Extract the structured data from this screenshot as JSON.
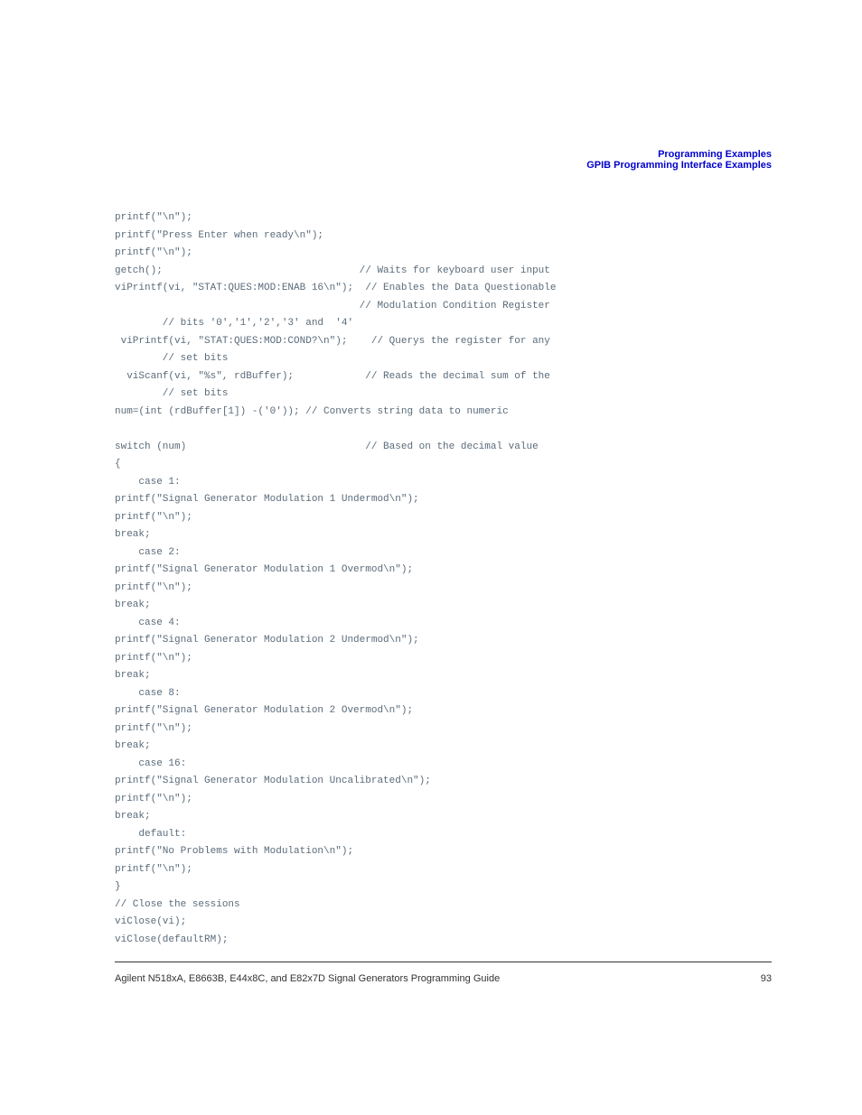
{
  "header": {
    "line1": "Programming Examples",
    "line2": "GPIB Programming Interface Examples"
  },
  "code": {
    "line1": "printf(\"\\n\");",
    "line2": "printf(\"Press Enter when ready\\n\");",
    "line3": "printf(\"\\n\");",
    "line4": "getch();                                 // Waits for keyboard user input",
    "line5": "viPrintf(vi, \"STAT:QUES:MOD:ENAB 16\\n\");  // Enables the Data Questionable",
    "line6": "                                         // Modulation Condition Register",
    "line7": "        // bits '0','1','2','3' and  '4'",
    "line8": " viPrintf(vi, \"STAT:QUES:MOD:COND?\\n\");    // Querys the register for any",
    "line9": "        // set bits",
    "line10": "  viScanf(vi, \"%s\", rdBuffer);            // Reads the decimal sum of the",
    "line11": "        // set bits",
    "line12": "num=(int (rdBuffer[1]) -('0')); // Converts string data to numeric ",
    "line13": "",
    "line14": "switch (num)                              // Based on the decimal value",
    "line15": "{",
    "line16": "    case 1:",
    "line17": "printf(\"Signal Generator Modulation 1 Undermod\\n\");",
    "line18": "printf(\"\\n\");",
    "line19": "break;",
    "line20": "    case 2:",
    "line21": "printf(\"Signal Generator Modulation 1 Overmod\\n\");",
    "line22": "printf(\"\\n\");",
    "line23": "break;",
    "line24": "    case 4:",
    "line25": "printf(\"Signal Generator Modulation 2 Undermod\\n\");",
    "line26": "printf(\"\\n\");",
    "line27": "break;",
    "line28": "    case 8:",
    "line29": "printf(\"Signal Generator Modulation 2 Overmod\\n\");",
    "line30": "printf(\"\\n\");",
    "line31": "break;",
    "line32": "    case 16:",
    "line33": "printf(\"Signal Generator Modulation Uncalibrated\\n\");",
    "line34": "printf(\"\\n\");",
    "line35": "break;",
    "line36": "    default:",
    "line37": "printf(\"No Problems with Modulation\\n\");",
    "line38": "printf(\"\\n\");",
    "line39": "}",
    "line40": "// Close the sessions",
    "line41": "viClose(vi);",
    "line42": "viClose(defaultRM);"
  },
  "footer": {
    "text": "Agilent N518xA, E8663B, E44x8C, and E82x7D Signal Generators Programming Guide",
    "page": "93"
  }
}
